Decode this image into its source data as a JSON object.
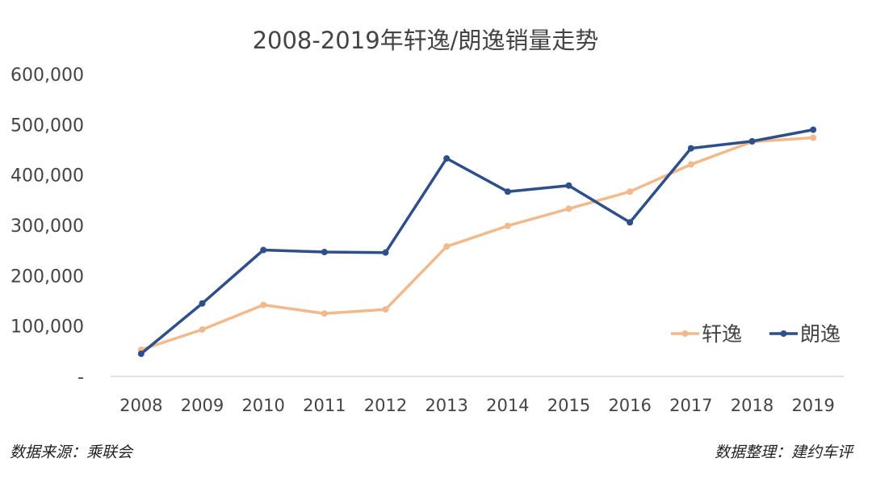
{
  "chart_data": {
    "type": "line",
    "title": "2008-2019年轩逸/朗逸销量走势",
    "categories": [
      "2008",
      "2009",
      "2010",
      "2011",
      "2012",
      "2013",
      "2014",
      "2015",
      "2016",
      "2017",
      "2018",
      "2019"
    ],
    "series": [
      {
        "name": "轩逸",
        "color": "#F2B98B",
        "values": [
          53000,
          93000,
          142000,
          125000,
          133000,
          258000,
          299000,
          333000,
          367000,
          421000,
          466000,
          474000
        ]
      },
      {
        "name": "朗逸",
        "color": "#2E4F8A",
        "values": [
          45000,
          145000,
          251000,
          247000,
          246000,
          433000,
          367000,
          379000,
          306000,
          453000,
          467000,
          490000
        ]
      }
    ],
    "y_ticks": [
      "-",
      "100,000",
      "200,000",
      "300,000",
      "400,000",
      "500,000",
      "600,000"
    ],
    "ylim": [
      0,
      600000
    ],
    "grid": false,
    "legend_position": "bottom-right"
  },
  "footer": {
    "source_left": "数据来源：乘联会",
    "source_right": "数据整理：建约车评"
  }
}
